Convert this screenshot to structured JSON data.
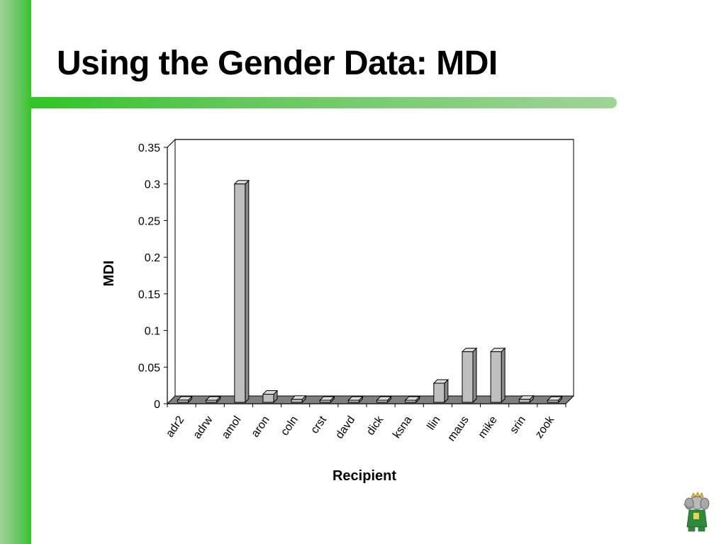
{
  "slide": {
    "title": "Using the Gender Data: MDI"
  },
  "chart_data": {
    "type": "bar",
    "title": "",
    "xlabel": "Recipient",
    "ylabel": "MDI",
    "categories": [
      "adr2",
      "adrw",
      "amol",
      "aron",
      "coln",
      "crst",
      "davd",
      "dick",
      "ksna",
      "llin",
      "maus",
      "mike",
      "srin",
      "zook"
    ],
    "values": [
      0.005,
      0,
      0.3,
      0.013,
      0.006,
      0,
      0,
      0,
      0,
      0.028,
      0.071,
      0.071,
      0.006,
      0
    ],
    "ylim": [
      0,
      0.35
    ],
    "yticks": [
      "0",
      "0.05",
      "0.1",
      "0.15",
      "0.2",
      "0.25",
      "0.3",
      "0.35"
    ],
    "grid": true,
    "legend": "none",
    "bar_color": "#bfbfbf"
  },
  "colors": {
    "accent": "#36c52a",
    "bar_fill": "#bfbfbf",
    "bar_side": "#8a8a8a",
    "bar_top": "#dcdcdc",
    "floor": "#7f7f7f"
  },
  "logo": {
    "name": "elephant-mascot-icon"
  }
}
